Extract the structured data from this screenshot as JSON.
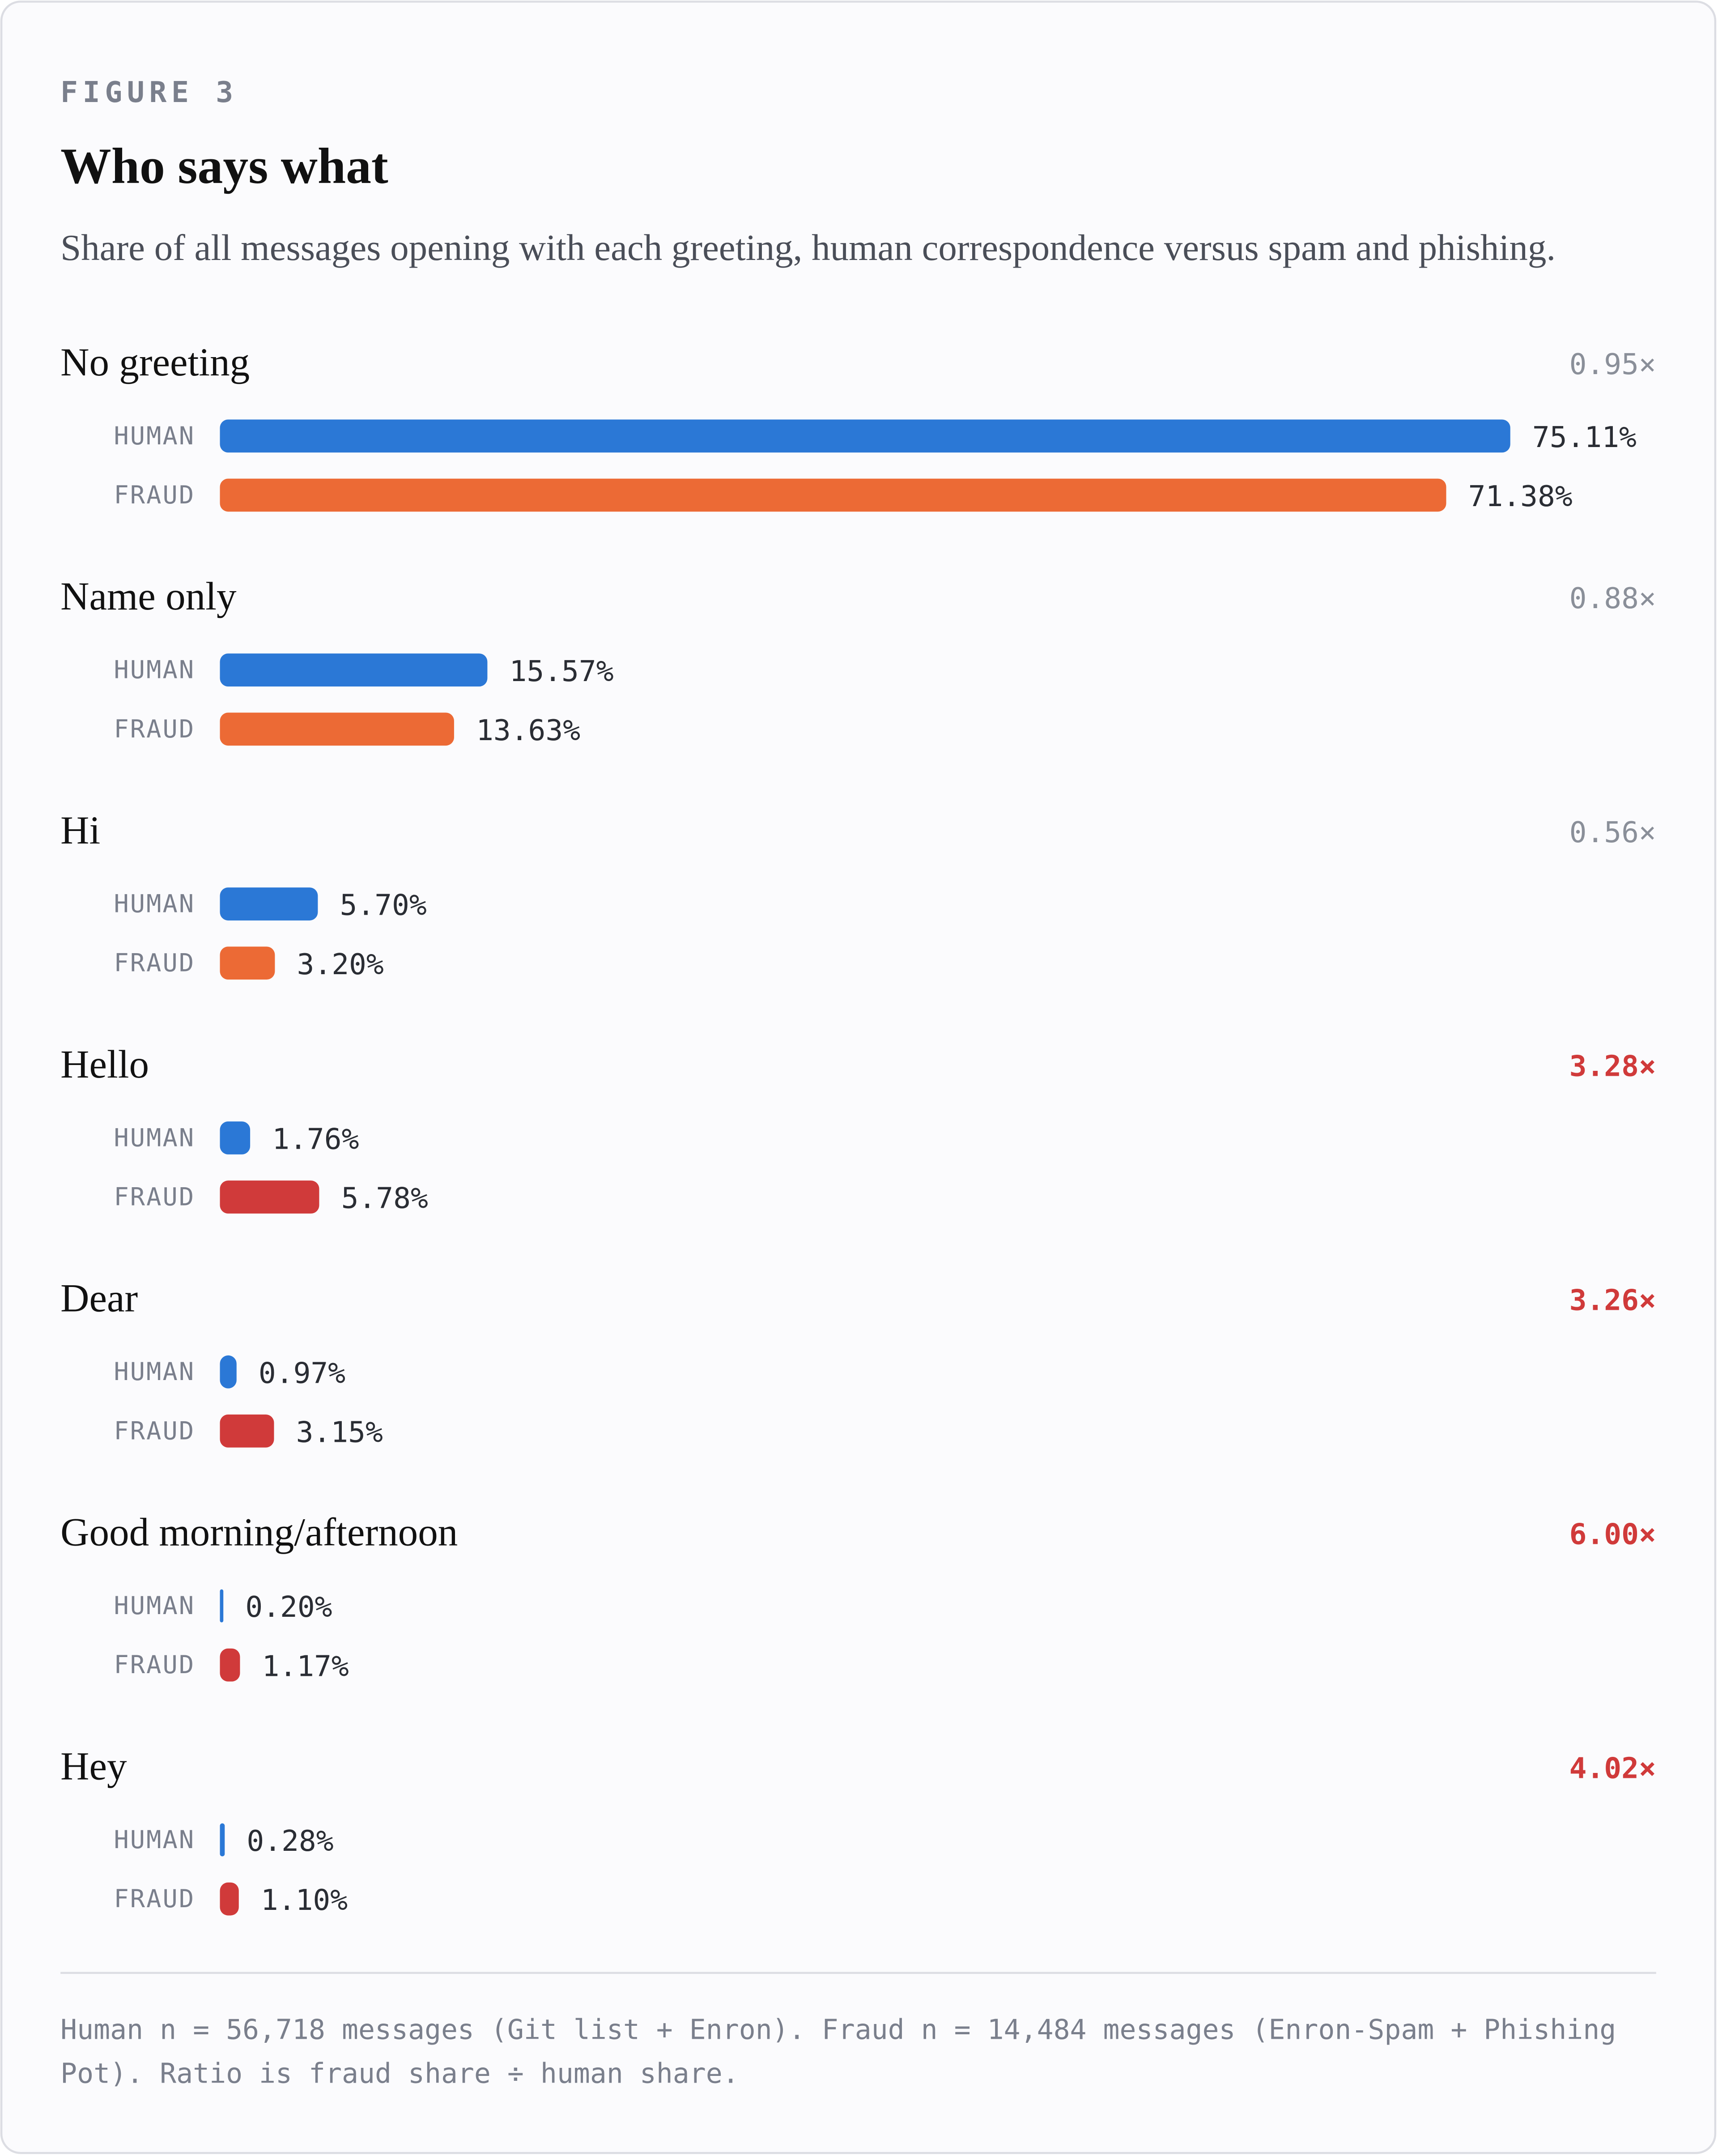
{
  "chart_data": {
    "type": "bar",
    "orientation": "horizontal",
    "eyebrow": "FIGURE 3",
    "title": "Who says what",
    "subtitle": "Share of all messages opening with each greeting, human correspondence versus spam and phishing.",
    "categories": [
      "No greeting",
      "Name only",
      "Hi",
      "Hello",
      "Dear",
      "Good morning/afternoon",
      "Hey"
    ],
    "series": [
      {
        "name": "HUMAN",
        "color": "#2b78d6",
        "values": [
          75.11,
          15.57,
          5.7,
          1.76,
          0.97,
          0.2,
          0.28
        ],
        "value_labels": [
          "75.11%",
          "15.57%",
          "5.70%",
          "1.76%",
          "0.97%",
          "0.20%",
          "0.28%"
        ]
      },
      {
        "name": "FRAUD",
        "color": "#ec6a35",
        "colors": [
          "#ec6a35",
          "#ec6a35",
          "#ec6a35",
          "#d03a3a",
          "#d03a3a",
          "#d03a3a",
          "#d03a3a"
        ],
        "values": [
          71.38,
          13.63,
          3.2,
          5.78,
          3.15,
          1.17,
          1.1
        ],
        "value_labels": [
          "71.38%",
          "13.63%",
          "3.20%",
          "5.78%",
          "3.15%",
          "1.17%",
          "1.10%"
        ]
      }
    ],
    "ratios": [
      0.95,
      0.88,
      0.56,
      3.28,
      3.26,
      6.0,
      4.02
    ],
    "ratio_labels": [
      "0.95×",
      "0.88×",
      "0.56×",
      "3.28×",
      "3.26×",
      "6.00×",
      "4.02×"
    ],
    "ratio_colors": [
      "#8a8f99",
      "#8a8f99",
      "#8a8f99",
      "#d03a3a",
      "#d03a3a",
      "#d03a3a",
      "#d03a3a"
    ],
    "xlim": [
      0,
      76
    ],
    "note": "Human n = 56,718 messages (Git list + Enron). Fraud n = 14,484 messages (Enron-Spam + Phishing Pot). Ratio is fraud share ÷ human share."
  }
}
